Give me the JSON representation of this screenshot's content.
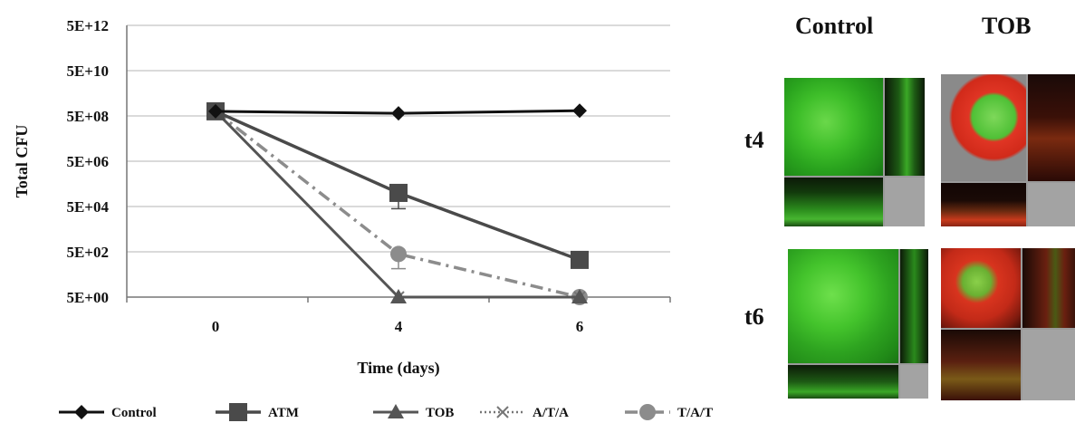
{
  "chart_data": {
    "type": "line",
    "xlabel": "Time (days)",
    "ylabel": "Total CFU",
    "x_categories": [
      "0",
      "4",
      "6"
    ],
    "y_scale": "log",
    "y_ticks": [
      "5E+00",
      "5E+02",
      "5E+04",
      "5E+06",
      "5E+08",
      "5E+10",
      "5E+12"
    ],
    "y_tick_values": [
      5,
      500,
      50000,
      5000000,
      500000000,
      50000000000,
      5000000000000
    ],
    "ylim": [
      5,
      5000000000000
    ],
    "grid": true,
    "legend_position": "bottom",
    "series": [
      {
        "name": "Control",
        "marker": "diamond",
        "dash": "solid",
        "color": "#111111",
        "values": [
          800000000,
          650000000,
          850000000
        ]
      },
      {
        "name": "ATM",
        "marker": "square",
        "dash": "solid",
        "color": "#4a4a4a",
        "values": [
          800000000,
          200000,
          220
        ]
      },
      {
        "name": "TOB",
        "marker": "triangle",
        "dash": "solid",
        "color": "#555555",
        "values": [
          800000000,
          5,
          5
        ]
      },
      {
        "name": "A/T/A",
        "marker": "x",
        "dash": "dotted",
        "color": "#777777",
        "values": [
          800000000,
          5,
          5
        ]
      },
      {
        "name": "T/A/T",
        "marker": "circle",
        "dash": "dashdot",
        "color": "#8c8c8c",
        "values": [
          800000000,
          400,
          5
        ]
      }
    ],
    "error_bars": [
      {
        "series": "ATM",
        "x": "4",
        "upper": 200000,
        "lower": 40000
      },
      {
        "series": "T/A/T",
        "x": "4",
        "upper": 400,
        "lower": 90
      }
    ]
  },
  "microscopy": {
    "columns": [
      "Control",
      "TOB"
    ],
    "rows": [
      "t4",
      "t6"
    ]
  }
}
